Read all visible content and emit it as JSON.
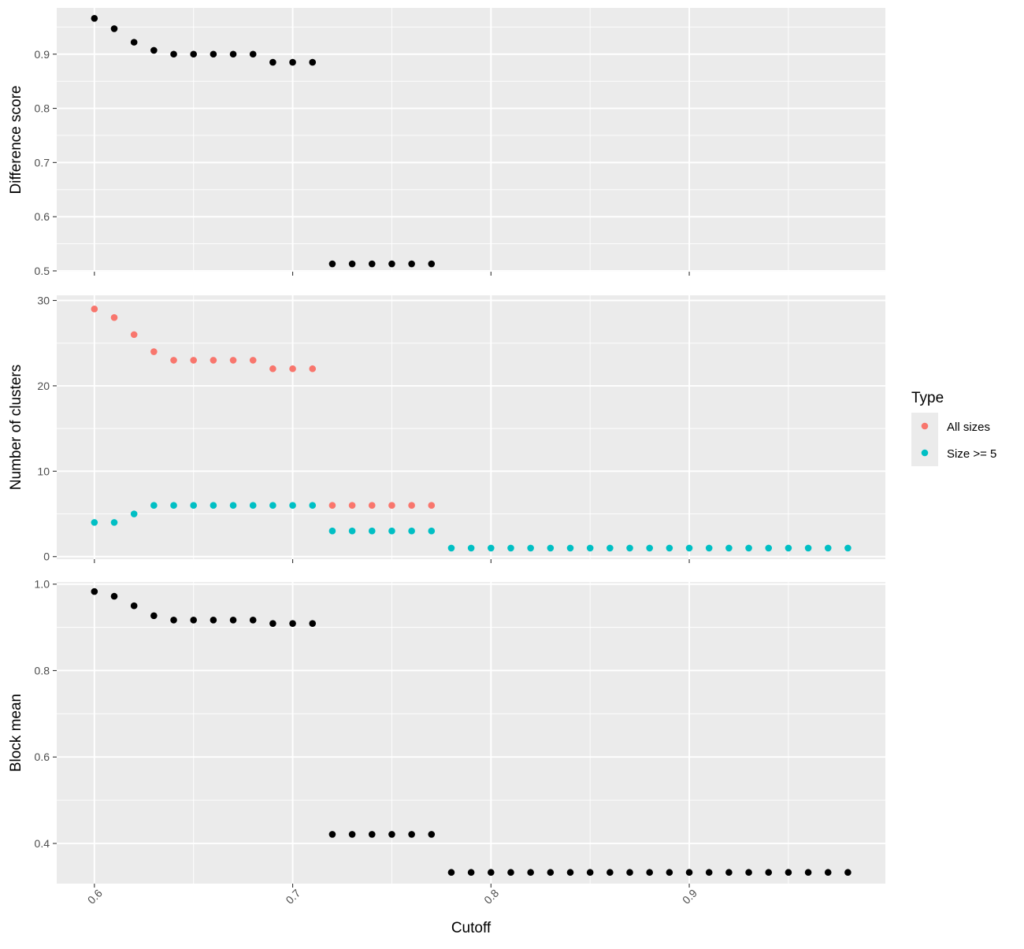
{
  "colors": {
    "panel_bg": "#ebebeb",
    "grid_major": "#ffffff",
    "black_points": "#000000",
    "all_sizes": "#f8766d",
    "size_ge_5": "#00bfc4"
  },
  "chart_data": {
    "type": "scatter",
    "xlabel": "Cutoff",
    "x_ticks": [
      "0.6",
      "0.7",
      "0.8",
      "0.9"
    ],
    "x_tick_values": [
      0.6,
      0.7,
      0.8,
      0.9
    ],
    "xlim": [
      0.581,
      0.9989
    ],
    "legend": {
      "title": "Type",
      "placement": "right",
      "entries": [
        "All sizes",
        "Size >= 5"
      ]
    },
    "panels": [
      {
        "ylabel": "Difference score",
        "ylim": [
          0.4985,
          0.9854
        ],
        "y_ticks": [
          "0.5",
          "0.6",
          "0.7",
          "0.8",
          "0.9"
        ],
        "y_tick_values": [
          0.5,
          0.6,
          0.7,
          0.8,
          0.9
        ],
        "series": [
          {
            "x": [
              0.6,
              0.61,
              0.62,
              0.63,
              0.64,
              0.65,
              0.66,
              0.67,
              0.68,
              0.69,
              0.7,
              0.71,
              0.72,
              0.73,
              0.74,
              0.75,
              0.76,
              0.77
            ],
            "y": [
              0.966,
              0.947,
              0.922,
              0.907,
              0.9,
              0.9,
              0.9,
              0.9,
              0.9,
              0.885,
              0.885,
              0.885,
              0.513,
              0.513,
              0.513,
              0.513,
              0.513,
              0.513
            ]
          }
        ]
      },
      {
        "ylabel": "Number of clusters",
        "ylim": [
          -0.3,
          30.6
        ],
        "y_ticks": [
          "0",
          "10",
          "20",
          "30"
        ],
        "y_tick_values": [
          0,
          10,
          20,
          30
        ],
        "series": [
          {
            "name": "All sizes",
            "x": [
              0.6,
              0.61,
              0.62,
              0.63,
              0.64,
              0.65,
              0.66,
              0.67,
              0.68,
              0.69,
              0.7,
              0.71,
              0.72,
              0.73,
              0.74,
              0.75,
              0.76,
              0.77
            ],
            "y": [
              29,
              28,
              26,
              24,
              23,
              23,
              23,
              23,
              23,
              22,
              22,
              22,
              6,
              6,
              6,
              6,
              6,
              6
            ]
          },
          {
            "name": "Size >= 5",
            "x": [
              0.6,
              0.61,
              0.62,
              0.63,
              0.64,
              0.65,
              0.66,
              0.67,
              0.68,
              0.69,
              0.7,
              0.71,
              0.72,
              0.73,
              0.74,
              0.75,
              0.76,
              0.77,
              0.78,
              0.79,
              0.8,
              0.81,
              0.82,
              0.83,
              0.84,
              0.85,
              0.86,
              0.87,
              0.88,
              0.89,
              0.9,
              0.91,
              0.92,
              0.93,
              0.94,
              0.95,
              0.96,
              0.97,
              0.98
            ],
            "y": [
              4,
              4,
              5,
              6,
              6,
              6,
              6,
              6,
              6,
              6,
              6,
              6,
              3,
              3,
              3,
              3,
              3,
              3,
              1,
              1,
              1,
              1,
              1,
              1,
              1,
              1,
              1,
              1,
              1,
              1,
              1,
              1,
              1,
              1,
              1,
              1,
              1,
              1,
              1
            ]
          }
        ]
      },
      {
        "ylabel": "Block mean",
        "ylim": [
          0.307,
          1.005
        ],
        "y_ticks": [
          "0.4",
          "0.6",
          "0.8",
          "1.0"
        ],
        "y_tick_values": [
          0.4,
          0.6,
          0.8,
          1.0
        ],
        "series": [
          {
            "x": [
              0.6,
              0.61,
              0.62,
              0.63,
              0.64,
              0.65,
              0.66,
              0.67,
              0.68,
              0.69,
              0.7,
              0.71,
              0.72,
              0.73,
              0.74,
              0.75,
              0.76,
              0.77,
              0.78,
              0.79,
              0.8,
              0.81,
              0.82,
              0.83,
              0.84,
              0.85,
              0.86,
              0.87,
              0.88,
              0.89,
              0.9,
              0.91,
              0.92,
              0.93,
              0.94,
              0.95,
              0.96,
              0.97,
              0.98
            ],
            "y": [
              0.983,
              0.972,
              0.95,
              0.927,
              0.917,
              0.917,
              0.917,
              0.917,
              0.917,
              0.909,
              0.909,
              0.909,
              0.421,
              0.421,
              0.421,
              0.421,
              0.421,
              0.421,
              0.333,
              0.333,
              0.333,
              0.333,
              0.333,
              0.333,
              0.333,
              0.333,
              0.333,
              0.333,
              0.333,
              0.333,
              0.333,
              0.333,
              0.333,
              0.333,
              0.333,
              0.333,
              0.333,
              0.333,
              0.333
            ]
          }
        ]
      }
    ]
  }
}
